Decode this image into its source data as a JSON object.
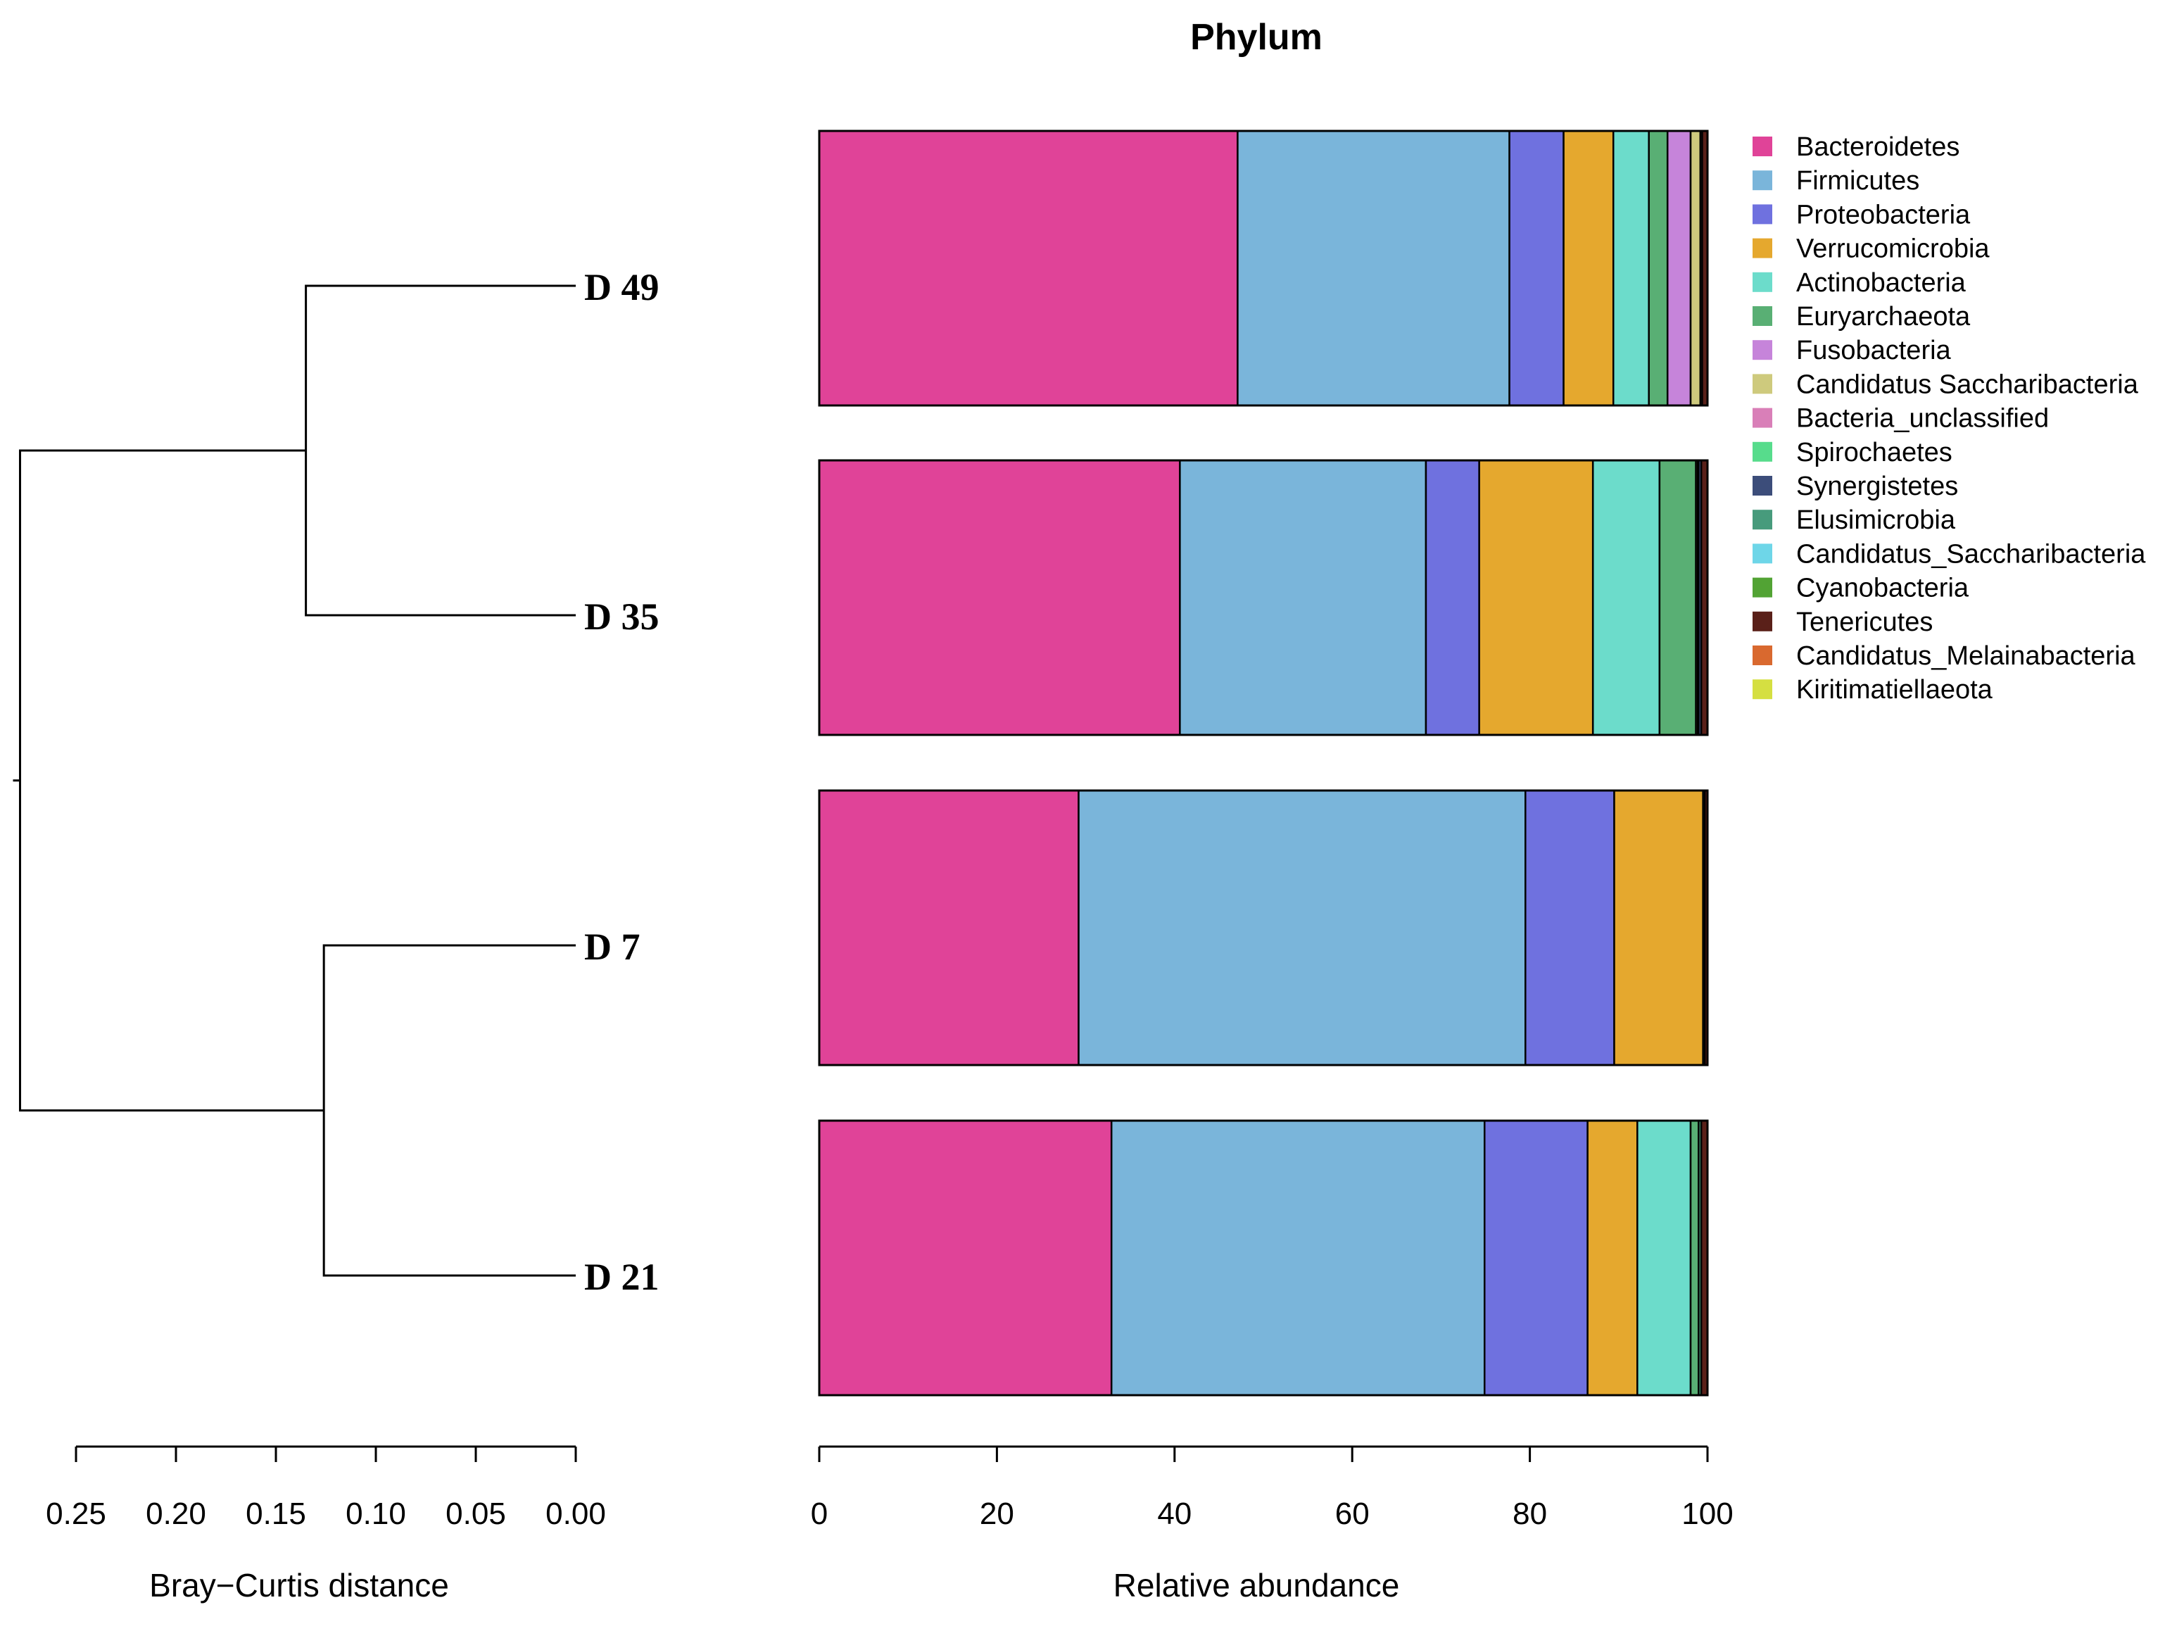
{
  "chart_data": {
    "type": "bar",
    "orientation": "horizontal",
    "stacked": true,
    "title": "Phylum",
    "xlabel": "Relative abundance",
    "xlim": [
      0,
      100
    ],
    "xticks": [
      "0",
      "20",
      "40",
      "60",
      "80",
      "100"
    ],
    "categories": [
      "D 49",
      "D 35",
      "D 7",
      "D 21"
    ],
    "legend_position": "right",
    "series": [
      {
        "name": "Bacteroidetes",
        "color": "#E04398",
        "values": [
          47.1,
          40.6,
          29.2,
          32.9
        ]
      },
      {
        "name": "Firmicutes",
        "color": "#7AB5DA",
        "values": [
          30.6,
          27.7,
          50.3,
          42.0
        ]
      },
      {
        "name": "Proteobacteria",
        "color": "#6F71DF",
        "values": [
          6.1,
          6.0,
          10.0,
          11.6
        ]
      },
      {
        "name": "Verrucomicrobia",
        "color": "#E5A82E",
        "values": [
          5.6,
          12.8,
          10.0,
          5.6
        ]
      },
      {
        "name": "Actinobacteria",
        "color": "#6CDCCB",
        "values": [
          4.0,
          7.5,
          0.2,
          6.0
        ]
      },
      {
        "name": "Euryarchaeota",
        "color": "#59AF74",
        "values": [
          2.1,
          4.1,
          0.0,
          0.9
        ]
      },
      {
        "name": "Fusobacteria",
        "color": "#C684DA",
        "values": [
          2.6,
          0.0,
          0.0,
          0.0
        ]
      },
      {
        "name": "Candidatus Saccharibacteria",
        "color": "#CECA7D",
        "values": [
          1.1,
          0.2,
          0.0,
          0.0
        ]
      },
      {
        "name": "Bacteria_unclassified",
        "color": "#D97FB8",
        "values": [
          0.2,
          0.1,
          0.0,
          0.0
        ]
      },
      {
        "name": "Spirochaetes",
        "color": "#57DC8C",
        "values": [
          0.0,
          0.0,
          0.0,
          0.0
        ]
      },
      {
        "name": "Synergistetes",
        "color": "#3C4D7A",
        "values": [
          0.0,
          0.3,
          0.0,
          0.0
        ]
      },
      {
        "name": "Elusimicrobia",
        "color": "#479B7C",
        "values": [
          0.0,
          0.0,
          0.0,
          0.3
        ]
      },
      {
        "name": "Candidatus_Saccharibacteria",
        "color": "#6ED6E8",
        "values": [
          0.0,
          0.0,
          0.0,
          0.0
        ]
      },
      {
        "name": "Cyanobacteria",
        "color": "#52A334",
        "values": [
          0.0,
          0.0,
          0.0,
          0.0
        ]
      },
      {
        "name": "Tenericutes",
        "color": "#5A2019",
        "values": [
          0.6,
          0.7,
          0.3,
          0.7
        ]
      },
      {
        "name": "Candidatus_Melainabacteria",
        "color": "#D9692F",
        "values": [
          0.0,
          0.0,
          0.0,
          0.0
        ]
      },
      {
        "name": "Kiritimatiellaeota",
        "color": "#D5DF41",
        "values": [
          0.0,
          0.0,
          0.0,
          0.0
        ]
      }
    ],
    "dendrogram": {
      "xlabel": "Bray−Curtis distance",
      "xlim": [
        0.0,
        0.28
      ],
      "xticks": [
        "0.25",
        "0.20",
        "0.15",
        "0.10",
        "0.05",
        "0.00"
      ],
      "leaves": [
        "D 49",
        "D 35",
        "D 7",
        "D 21"
      ],
      "merges": [
        {
          "left": "D 49",
          "right": "D 35",
          "height": 0.135
        },
        {
          "left": "D 7",
          "right": "D 21",
          "height": 0.126
        },
        {
          "left": "cluster-1",
          "right": "cluster-2",
          "height": 0.278
        }
      ]
    }
  }
}
